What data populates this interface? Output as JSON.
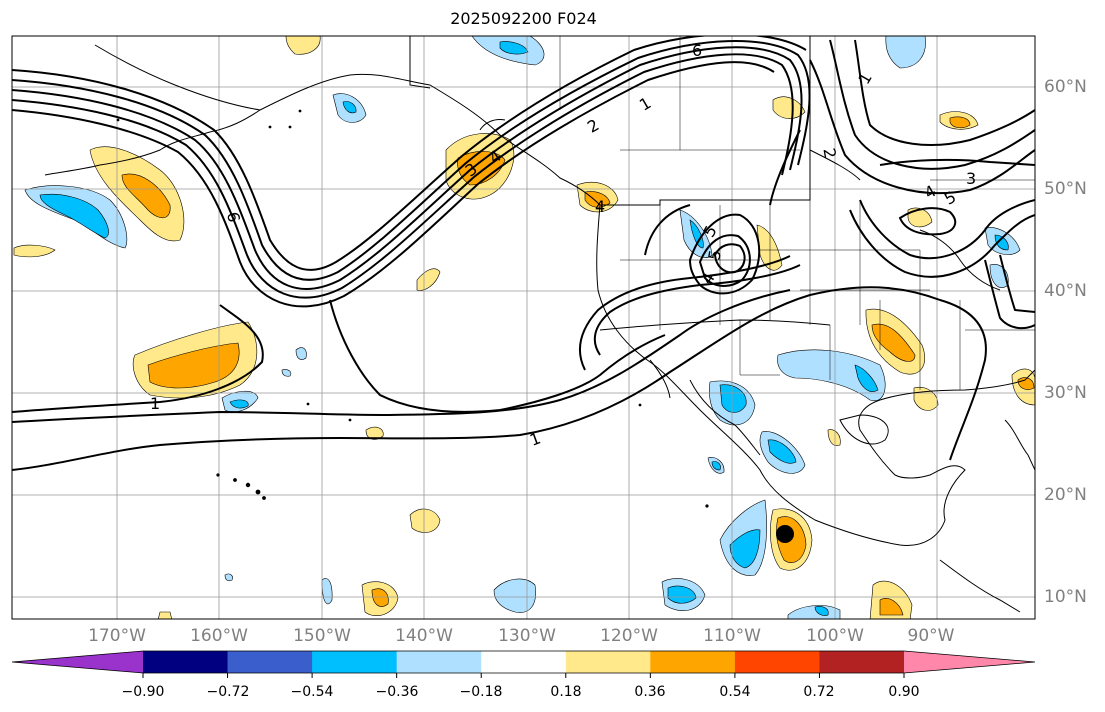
{
  "title": "2025092200 F024",
  "lon_labels": [
    "170°W",
    "160°W",
    "150°W",
    "140°W",
    "130°W",
    "120°W",
    "110°W",
    "100°W",
    "90°W"
  ],
  "lat_labels": [
    "60°N",
    "50°N",
    "40°N",
    "30°N",
    "20°N",
    "10°N"
  ],
  "contour_labels": [
    "6",
    "1",
    "2",
    "6",
    "1",
    "3",
    "4",
    "5",
    "4",
    "2",
    "3",
    "4",
    "5",
    "1",
    "1",
    "4",
    "5"
  ],
  "colorbar": {
    "tick_labels": [
      "−0.90",
      "−0.72",
      "−0.54",
      "−0.36",
      "−0.18",
      "0.18",
      "0.36",
      "0.54",
      "0.72",
      "0.90"
    ],
    "colors": [
      "#9933cc",
      "#000080",
      "#3a5fcd",
      "#00bfff",
      "#b0e0ff",
      "#ffffff",
      "#ffe98a",
      "#ffa500",
      "#ff4500",
      "#b22222",
      "#ff88aa"
    ]
  },
  "markers": [
    {
      "name": "storm-center",
      "lon": -104.5,
      "lat": 16.5
    }
  ]
}
